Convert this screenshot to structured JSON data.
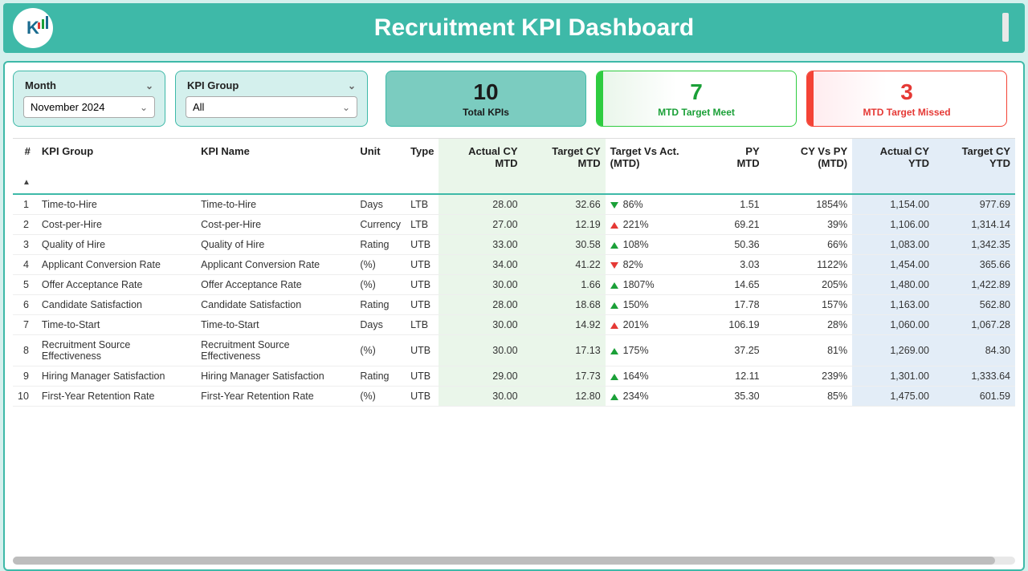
{
  "header": {
    "title": "Recruitment KPI Dashboard",
    "logo_letter": "K"
  },
  "filters": {
    "month_label": "Month",
    "month_value": "November 2024",
    "group_label": "KPI Group",
    "group_value": "All"
  },
  "metrics": {
    "total": {
      "value": "10",
      "label": "Total KPIs"
    },
    "meet": {
      "value": "7",
      "label": "MTD Target Meet"
    },
    "miss": {
      "value": "3",
      "label": "MTD Target Missed"
    }
  },
  "table": {
    "columns": {
      "idx": "#",
      "group": "KPI Group",
      "name": "KPI Name",
      "unit": "Unit",
      "type": "Type",
      "act_mtd": "Actual CY MTD",
      "tgt_mtd": "Target CY MTD",
      "tva": "Target Vs Act. (MTD)",
      "py_mtd": "PY MTD",
      "cy_vs_py": "CY Vs PY (MTD)",
      "act_ytd": "Actual CY YTD",
      "tgt_ytd": "Target CY YTD"
    },
    "rows": [
      {
        "idx": "1",
        "group": "Time-to-Hire",
        "name": "Time-to-Hire",
        "unit": "Days",
        "type": "LTB",
        "act_mtd": "28.00",
        "tgt_mtd": "32.66",
        "tva_ind": "dn-green",
        "tva": "86%",
        "py_mtd": "1.51",
        "cy_vs_py": "1854%",
        "act_ytd": "1,154.00",
        "tgt_ytd": "977.69"
      },
      {
        "idx": "2",
        "group": "Cost-per-Hire",
        "name": "Cost-per-Hire",
        "unit": "Currency",
        "type": "LTB",
        "act_mtd": "27.00",
        "tgt_mtd": "12.19",
        "tva_ind": "up-red",
        "tva": "221%",
        "py_mtd": "69.21",
        "cy_vs_py": "39%",
        "act_ytd": "1,106.00",
        "tgt_ytd": "1,314.14"
      },
      {
        "idx": "3",
        "group": "Quality of Hire",
        "name": "Quality of Hire",
        "unit": "Rating",
        "type": "UTB",
        "act_mtd": "33.00",
        "tgt_mtd": "30.58",
        "tva_ind": "up-green",
        "tva": "108%",
        "py_mtd": "50.36",
        "cy_vs_py": "66%",
        "act_ytd": "1,083.00",
        "tgt_ytd": "1,342.35"
      },
      {
        "idx": "4",
        "group": "Applicant Conversion Rate",
        "name": "Applicant Conversion Rate",
        "unit": "(%)",
        "type": "UTB",
        "act_mtd": "34.00",
        "tgt_mtd": "41.22",
        "tva_ind": "dn-red",
        "tva": "82%",
        "py_mtd": "3.03",
        "cy_vs_py": "1122%",
        "act_ytd": "1,454.00",
        "tgt_ytd": "365.66"
      },
      {
        "idx": "5",
        "group": "Offer Acceptance Rate",
        "name": "Offer Acceptance Rate",
        "unit": "(%)",
        "type": "UTB",
        "act_mtd": "30.00",
        "tgt_mtd": "1.66",
        "tva_ind": "up-green",
        "tva": "1807%",
        "py_mtd": "14.65",
        "cy_vs_py": "205%",
        "act_ytd": "1,480.00",
        "tgt_ytd": "1,422.89"
      },
      {
        "idx": "6",
        "group": "Candidate Satisfaction",
        "name": "Candidate Satisfaction",
        "unit": "Rating",
        "type": "UTB",
        "act_mtd": "28.00",
        "tgt_mtd": "18.68",
        "tva_ind": "up-green",
        "tva": "150%",
        "py_mtd": "17.78",
        "cy_vs_py": "157%",
        "act_ytd": "1,163.00",
        "tgt_ytd": "562.80"
      },
      {
        "idx": "7",
        "group": "Time-to-Start",
        "name": "Time-to-Start",
        "unit": "Days",
        "type": "LTB",
        "act_mtd": "30.00",
        "tgt_mtd": "14.92",
        "tva_ind": "up-red",
        "tva": "201%",
        "py_mtd": "106.19",
        "cy_vs_py": "28%",
        "act_ytd": "1,060.00",
        "tgt_ytd": "1,067.28"
      },
      {
        "idx": "8",
        "group": "Recruitment Source Effectiveness",
        "name": "Recruitment Source Effectiveness",
        "unit": "(%)",
        "type": "UTB",
        "act_mtd": "30.00",
        "tgt_mtd": "17.13",
        "tva_ind": "up-green",
        "tva": "175%",
        "py_mtd": "37.25",
        "cy_vs_py": "81%",
        "act_ytd": "1,269.00",
        "tgt_ytd": "84.30"
      },
      {
        "idx": "9",
        "group": "Hiring Manager Satisfaction",
        "name": "Hiring Manager Satisfaction",
        "unit": "Rating",
        "type": "UTB",
        "act_mtd": "29.00",
        "tgt_mtd": "17.73",
        "tva_ind": "up-green",
        "tva": "164%",
        "py_mtd": "12.11",
        "cy_vs_py": "239%",
        "act_ytd": "1,301.00",
        "tgt_ytd": "1,333.64"
      },
      {
        "idx": "10",
        "group": "First-Year Retention Rate",
        "name": "First-Year Retention Rate",
        "unit": "(%)",
        "type": "UTB",
        "act_mtd": "30.00",
        "tgt_mtd": "12.80",
        "tva_ind": "up-green",
        "tva": "234%",
        "py_mtd": "35.30",
        "cy_vs_py": "85%",
        "act_ytd": "1,475.00",
        "tgt_ytd": "601.59"
      }
    ]
  },
  "colors": {
    "brand_teal": "#3eb9a8",
    "light_teal": "#d4f0ed",
    "card_teal": "#7bccc0",
    "green": "#1ba038",
    "red": "#e53935",
    "col_green_bg": "#eaf6ea",
    "col_blue_bg": "#e3edf7"
  }
}
